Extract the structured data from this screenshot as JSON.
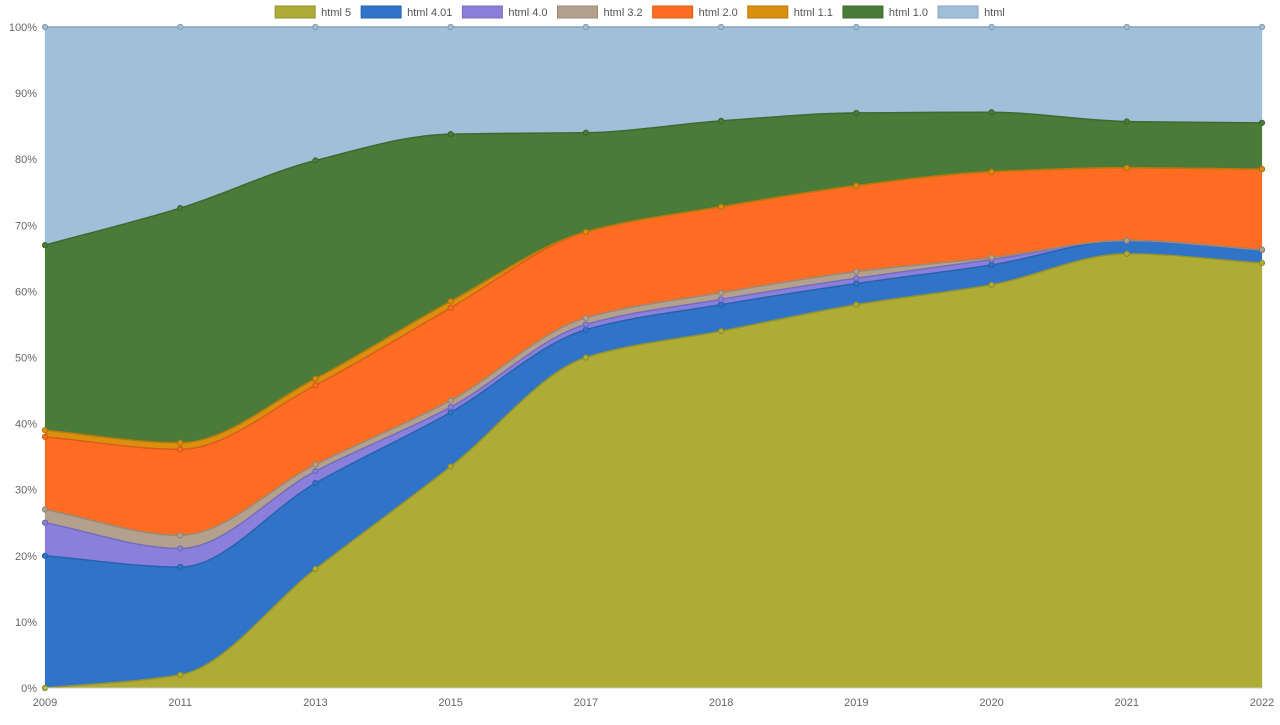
{
  "chart_data": {
    "type": "area",
    "stacked": true,
    "x": [
      "2009",
      "2011",
      "2013",
      "2015",
      "2017",
      "2018",
      "2019",
      "2020",
      "2021",
      "2022"
    ],
    "yticks": [
      "0%",
      "10%",
      "20%",
      "30%",
      "40%",
      "50%",
      "60%",
      "70%",
      "80%",
      "90%",
      "100%"
    ],
    "ylim": [
      0,
      100
    ],
    "legend_position": "top-center",
    "series": [
      {
        "name": "html 5",
        "color": "#AEAC35",
        "values": [
          0,
          2,
          18,
          33.5,
          50,
          54,
          58,
          61,
          65.7,
          64.3
        ]
      },
      {
        "name": "html 4.01",
        "color": "#2F74C9",
        "values": [
          20,
          16.3,
          13,
          8.2,
          4.2,
          4,
          3.2,
          3,
          2,
          2
        ]
      },
      {
        "name": "html 4.0",
        "color": "#8A80DC",
        "values": [
          5,
          2.8,
          1.8,
          0.8,
          0.8,
          0.8,
          0.8,
          0.8,
          0,
          0
        ]
      },
      {
        "name": "html 3.2",
        "color": "#B3A18D",
        "values": [
          2,
          2,
          1,
          1,
          1,
          1,
          1,
          0.3,
          0,
          0
        ]
      },
      {
        "name": "html 2.0",
        "color": "#FF6C22",
        "values": [
          11,
          13,
          12,
          14,
          13,
          13,
          13,
          13,
          11,
          12.2
        ]
      },
      {
        "name": "html 1.1",
        "color": "#DA8F0E",
        "values": [
          1,
          1,
          1,
          1,
          0,
          0,
          0,
          0,
          0,
          0
        ]
      },
      {
        "name": "html 1.0",
        "color": "#4A7B39",
        "values": [
          28,
          35.5,
          33,
          25.3,
          15,
          13,
          11,
          9,
          7,
          7
        ]
      },
      {
        "name": "html",
        "color": "#A0BFD8",
        "values": [
          33,
          27.4,
          20.2,
          16.2,
          16,
          14.2,
          13,
          12.9,
          14.3,
          14.5
        ]
      }
    ]
  }
}
